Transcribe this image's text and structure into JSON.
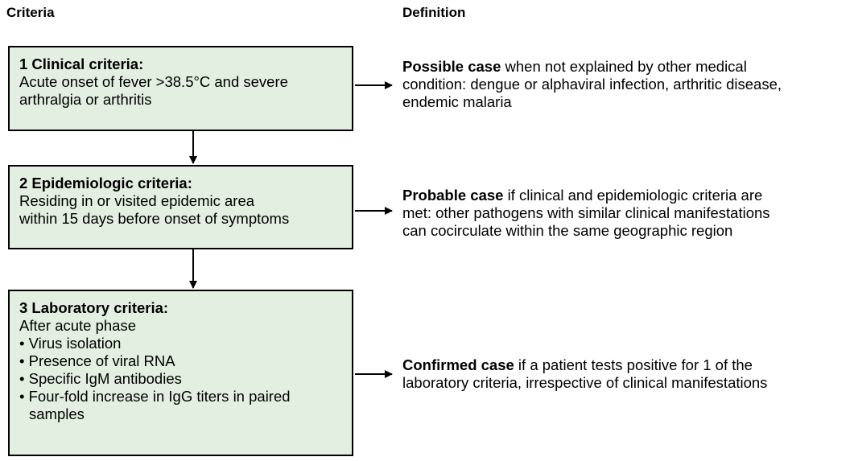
{
  "headers": {
    "criteria": "Criteria",
    "definition": "Definition"
  },
  "boxes": [
    {
      "title": "1 Clinical criteria:",
      "lines": [
        "Acute onset of fever >38.5°C and severe",
        "arthralgia or arthritis"
      ],
      "bullets": []
    },
    {
      "title": "2 Epidemiologic criteria:",
      "lines": [
        "Residing in or visited epidemic area",
        "within 15 days before onset of symptoms"
      ],
      "bullets": []
    },
    {
      "title": "3 Laboratory criteria:",
      "lines": [
        "After acute phase"
      ],
      "bullets": [
        "• Virus isolation",
        "• Presence of viral RNA",
        "• Specific IgM antibodies",
        "• Four-fold increase in IgG titers in paired samples"
      ]
    }
  ],
  "definitions": [
    {
      "term": "Possible case",
      "lines": [
        " when not explained by other medical",
        "condition: dengue or alphaviral infection, arthritic disease,",
        "endemic malaria"
      ]
    },
    {
      "term": "Probable case",
      "lines": [
        " if clinical and epidemiologic criteria are",
        "met: other pathogens with similar clinical manifestations",
        "can cocirculate within the same geographic region"
      ]
    },
    {
      "term": "Confirmed case",
      "lines": [
        " if a patient tests positive for 1 of the",
        "laboratory criteria, irrespective of clinical manifestations"
      ]
    }
  ]
}
